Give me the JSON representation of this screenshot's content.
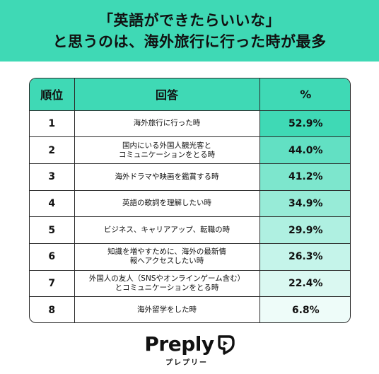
{
  "header": {
    "line1": "「英語ができたらいいな」",
    "line2": "と思うのは、海外旅行に行った時が最多"
  },
  "table": {
    "headers": [
      "順位",
      "回答",
      "%"
    ]
  },
  "chart_data": {
    "type": "table",
    "title": "「英語ができたらいいな」と思うのは、海外旅行に行った時が最多",
    "columns": [
      "順位",
      "回答",
      "%"
    ],
    "rows": [
      {
        "rank": "1",
        "answer": "海外旅行に行った時",
        "pct": "52.9%",
        "value": 52.9
      },
      {
        "rank": "2",
        "answer": "国内にいる外国人観光客と\nコミュニケーションをとる時",
        "pct": "44.0%",
        "value": 44.0
      },
      {
        "rank": "3",
        "answer": "海外ドラマや映画を鑑賞する時",
        "pct": "41.2%",
        "value": 41.2
      },
      {
        "rank": "4",
        "answer": "英語の歌詞を理解したい時",
        "pct": "34.9%",
        "value": 34.9
      },
      {
        "rank": "5",
        "answer": "ビジネス、キャリアアップ、転職の時",
        "pct": "29.9%",
        "value": 29.9
      },
      {
        "rank": "6",
        "answer": "知識を増やすために、海外の最新情\n報へアクセスしたい時",
        "pct": "26.3%",
        "value": 26.3
      },
      {
        "rank": "7",
        "answer": "外国人の友人（SNSやオンラインゲーム含む）\nとコミュニケーションをとる時",
        "pct": "22.4%",
        "value": 22.4
      },
      {
        "rank": "8",
        "answer": "海外留学をした時",
        "pct": "6.8%",
        "value": 6.8
      }
    ],
    "colors": [
      "#3fd9b5",
      "#62e0c3",
      "#7de6cd",
      "#97ebd7",
      "#aff0e1",
      "#c5f4ea",
      "#daf8f1",
      "#eefcf9"
    ]
  },
  "brand": {
    "name": "Preply",
    "sub": "プレプリー",
    "logo_icon": "preply-heart-icon"
  }
}
